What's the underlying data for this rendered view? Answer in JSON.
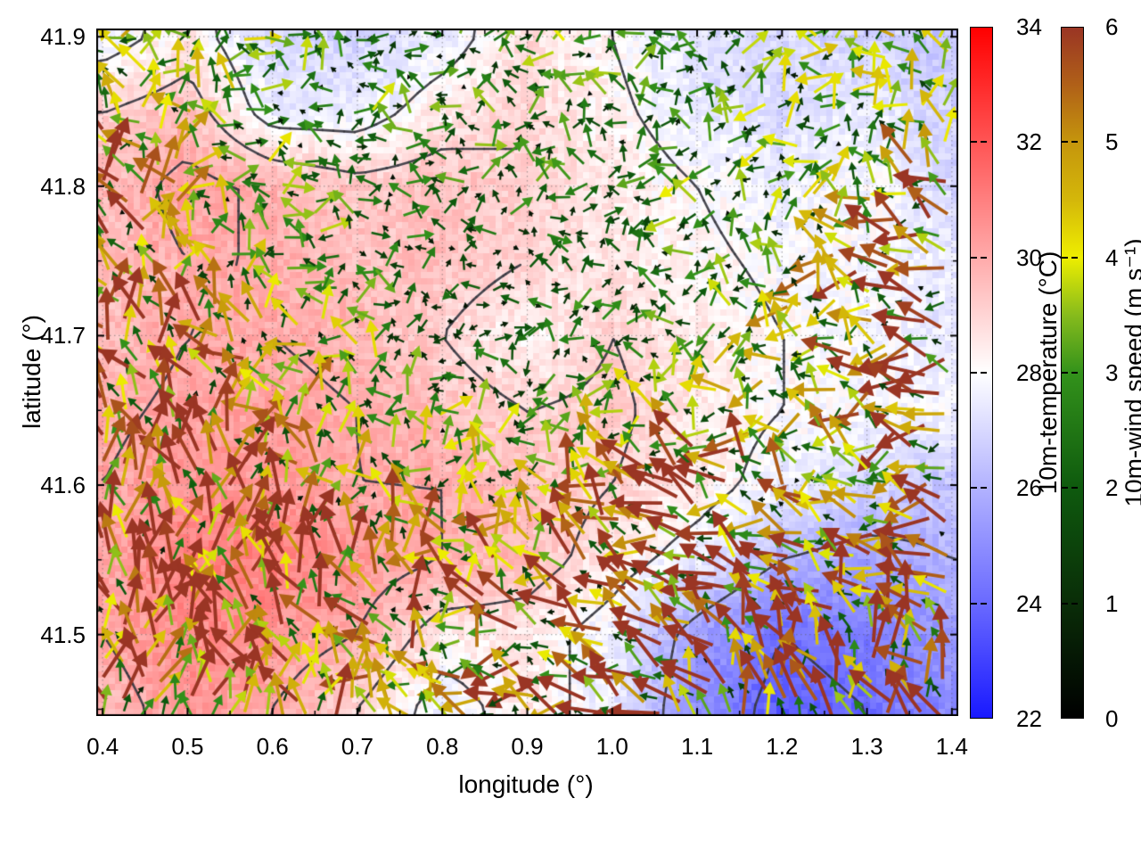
{
  "chart_data": {
    "type": "heatmap",
    "subtype": "meteorological map: 10m-temperature shaded field with wind-vector arrows colored by wind speed and dark contour lines",
    "title": "",
    "xlabel": "longitude (°)",
    "ylabel": "latitude (°)",
    "xlim": [
      0.3925,
      1.4075
    ],
    "ylim": [
      41.4455,
      41.9055
    ],
    "x_major_ticks": [
      0.4,
      0.5,
      0.6,
      0.7,
      0.8,
      0.9,
      1.0,
      1.1,
      1.2,
      1.3,
      1.4
    ],
    "x_minor_step": 0.05,
    "y_major_ticks": [
      41.5,
      41.6,
      41.7,
      41.8,
      41.9
    ],
    "y_minor_step": 0.05,
    "layout_hints": {
      "grid": "dotted at major ticks",
      "legend": "none",
      "colorbars": [
        "temperature inner right",
        "wind speed outer right"
      ],
      "tick_direction": "inward, mirrored"
    },
    "grid_lons": [
      0.4,
      0.5,
      0.6,
      0.7,
      0.8,
      0.9,
      1.0,
      1.1,
      1.2,
      1.3,
      1.4
    ],
    "grid_lats": [
      41.9,
      41.85,
      41.8,
      41.75,
      41.7,
      41.65,
      41.6,
      41.55,
      41.5,
      41.45
    ],
    "temperature": {
      "label": "10m-temperature (°C)",
      "range": [
        22,
        34
      ],
      "colorbar_ticks": [
        22,
        24,
        26,
        28,
        30,
        32,
        34
      ],
      "palette": [
        {
          "v": 22,
          "c": "#1919ff"
        },
        {
          "v": 24,
          "c": "#6a6aff"
        },
        {
          "v": 26,
          "c": "#b2b2ff"
        },
        {
          "v": 28,
          "c": "#ffffff"
        },
        {
          "v": 30,
          "c": "#ffaaaa"
        },
        {
          "v": 32,
          "c": "#ff5555"
        },
        {
          "v": 34,
          "c": "#ff0000"
        }
      ],
      "values": [
        [
          27.5,
          28.5,
          27.0,
          27.0,
          27.5,
          28.8,
          28.0,
          27.2,
          27.0,
          26.8,
          26.5
        ],
        [
          29.0,
          29.5,
          27.5,
          27.5,
          28.5,
          29.0,
          28.2,
          27.5,
          27.0,
          27.5,
          26.8
        ],
        [
          29.5,
          30.3,
          29.8,
          29.3,
          29.5,
          29.0,
          28.5,
          28.0,
          27.5,
          28.0,
          27.0
        ],
        [
          29.5,
          30.0,
          30.0,
          29.5,
          29.5,
          29.0,
          28.5,
          28.2,
          27.8,
          27.8,
          27.5
        ],
        [
          29.5,
          30.0,
          30.0,
          29.8,
          29.0,
          28.2,
          29.0,
          28.5,
          28.0,
          27.8,
          27.5
        ],
        [
          29.8,
          30.2,
          30.2,
          30.0,
          29.5,
          29.0,
          29.2,
          28.5,
          28.0,
          27.8,
          27.8
        ],
        [
          30.0,
          30.5,
          30.5,
          30.0,
          30.0,
          29.5,
          29.0,
          28.5,
          27.5,
          27.0,
          26.5
        ],
        [
          30.0,
          31.0,
          31.0,
          30.5,
          30.0,
          29.5,
          28.5,
          27.5,
          26.0,
          25.5,
          26.0
        ],
        [
          30.0,
          30.8,
          30.5,
          30.0,
          28.5,
          28.5,
          27.5,
          25.5,
          24.0,
          24.5,
          25.5
        ],
        [
          29.5,
          30.5,
          30.0,
          29.0,
          27.5,
          28.5,
          27.5,
          25.0,
          23.5,
          24.0,
          25.0
        ]
      ]
    },
    "wind": {
      "label": "10m-wind speed (m s⁻¹)",
      "range": [
        0,
        6
      ],
      "colorbar_ticks": [
        0,
        1,
        2,
        3,
        4,
        5,
        6
      ],
      "palette": [
        {
          "v": 0.0,
          "c": "#000000"
        },
        {
          "v": 1.0,
          "c": "#0a2d08"
        },
        {
          "v": 2.0,
          "c": "#0e5a0e"
        },
        {
          "v": 3.0,
          "c": "#33921b"
        },
        {
          "v": 3.5,
          "c": "#86bb1c"
        },
        {
          "v": 4.0,
          "c": "#eeee00"
        },
        {
          "v": 4.5,
          "c": "#d4b70a"
        },
        {
          "v": 5.0,
          "c": "#c5960c"
        },
        {
          "v": 5.5,
          "c": "#b06018"
        },
        {
          "v": 6.0,
          "c": "#9a3524"
        }
      ],
      "speed": [
        [
          3.0,
          2.5,
          2.5,
          2.0,
          2.0,
          2.5,
          2.5,
          2.0,
          2.5,
          3.0,
          3.0
        ],
        [
          4.0,
          3.0,
          2.5,
          2.5,
          2.0,
          2.5,
          2.0,
          2.0,
          2.5,
          3.0,
          3.5
        ],
        [
          4.5,
          3.0,
          2.5,
          2.0,
          2.0,
          2.0,
          2.0,
          2.5,
          2.5,
          3.0,
          4.0
        ],
        [
          4.5,
          3.5,
          2.5,
          2.0,
          1.6,
          1.6,
          2.0,
          2.0,
          3.0,
          4.0,
          4.5
        ],
        [
          5.0,
          4.0,
          3.0,
          2.5,
          1.6,
          1.5,
          2.0,
          2.5,
          3.0,
          4.0,
          4.5
        ],
        [
          5.0,
          4.5,
          3.5,
          3.0,
          2.5,
          2.0,
          2.5,
          3.0,
          3.0,
          3.5,
          4.5
        ],
        [
          5.0,
          4.5,
          4.0,
          3.5,
          3.0,
          3.0,
          4.0,
          4.5,
          4.0,
          4.0,
          4.5
        ],
        [
          5.0,
          5.0,
          4.5,
          4.0,
          3.5,
          4.0,
          4.5,
          4.5,
          4.5,
          4.0,
          4.5
        ],
        [
          4.5,
          5.0,
          4.5,
          4.0,
          3.5,
          4.0,
          4.5,
          4.5,
          4.5,
          4.5,
          4.5
        ],
        [
          4.5,
          5.0,
          4.5,
          3.5,
          3.0,
          4.0,
          4.5,
          5.0,
          4.5,
          4.5,
          4.5
        ]
      ],
      "direction_deg_math": [
        [
          100,
          95,
          90,
          90,
          95,
          100,
          110,
          110,
          105,
          110,
          120
        ],
        [
          105,
          95,
          90,
          90,
          95,
          100,
          110,
          115,
          110,
          115,
          130
        ],
        [
          110,
          100,
          95,
          90,
          95,
          105,
          115,
          120,
          120,
          130,
          150
        ],
        [
          115,
          105,
          100,
          95,
          100,
          110,
          120,
          130,
          140,
          160,
          175
        ],
        [
          110,
          105,
          100,
          100,
          110,
          120,
          130,
          140,
          155,
          170,
          180
        ],
        [
          105,
          100,
          100,
          105,
          115,
          130,
          140,
          150,
          165,
          175,
          185
        ],
        [
          100,
          95,
          95,
          105,
          120,
          135,
          145,
          155,
          170,
          180,
          185
        ],
        [
          95,
          90,
          95,
          110,
          130,
          145,
          155,
          150,
          140,
          150,
          160
        ],
        [
          90,
          90,
          95,
          115,
          140,
          160,
          165,
          130,
          110,
          115,
          130
        ],
        [
          90,
          90,
          100,
          120,
          150,
          170,
          170,
          120,
          100,
          105,
          115
        ]
      ]
    },
    "contours": {
      "levels": [
        24,
        26,
        28,
        29,
        30
      ],
      "color": "#3a3a42"
    }
  }
}
